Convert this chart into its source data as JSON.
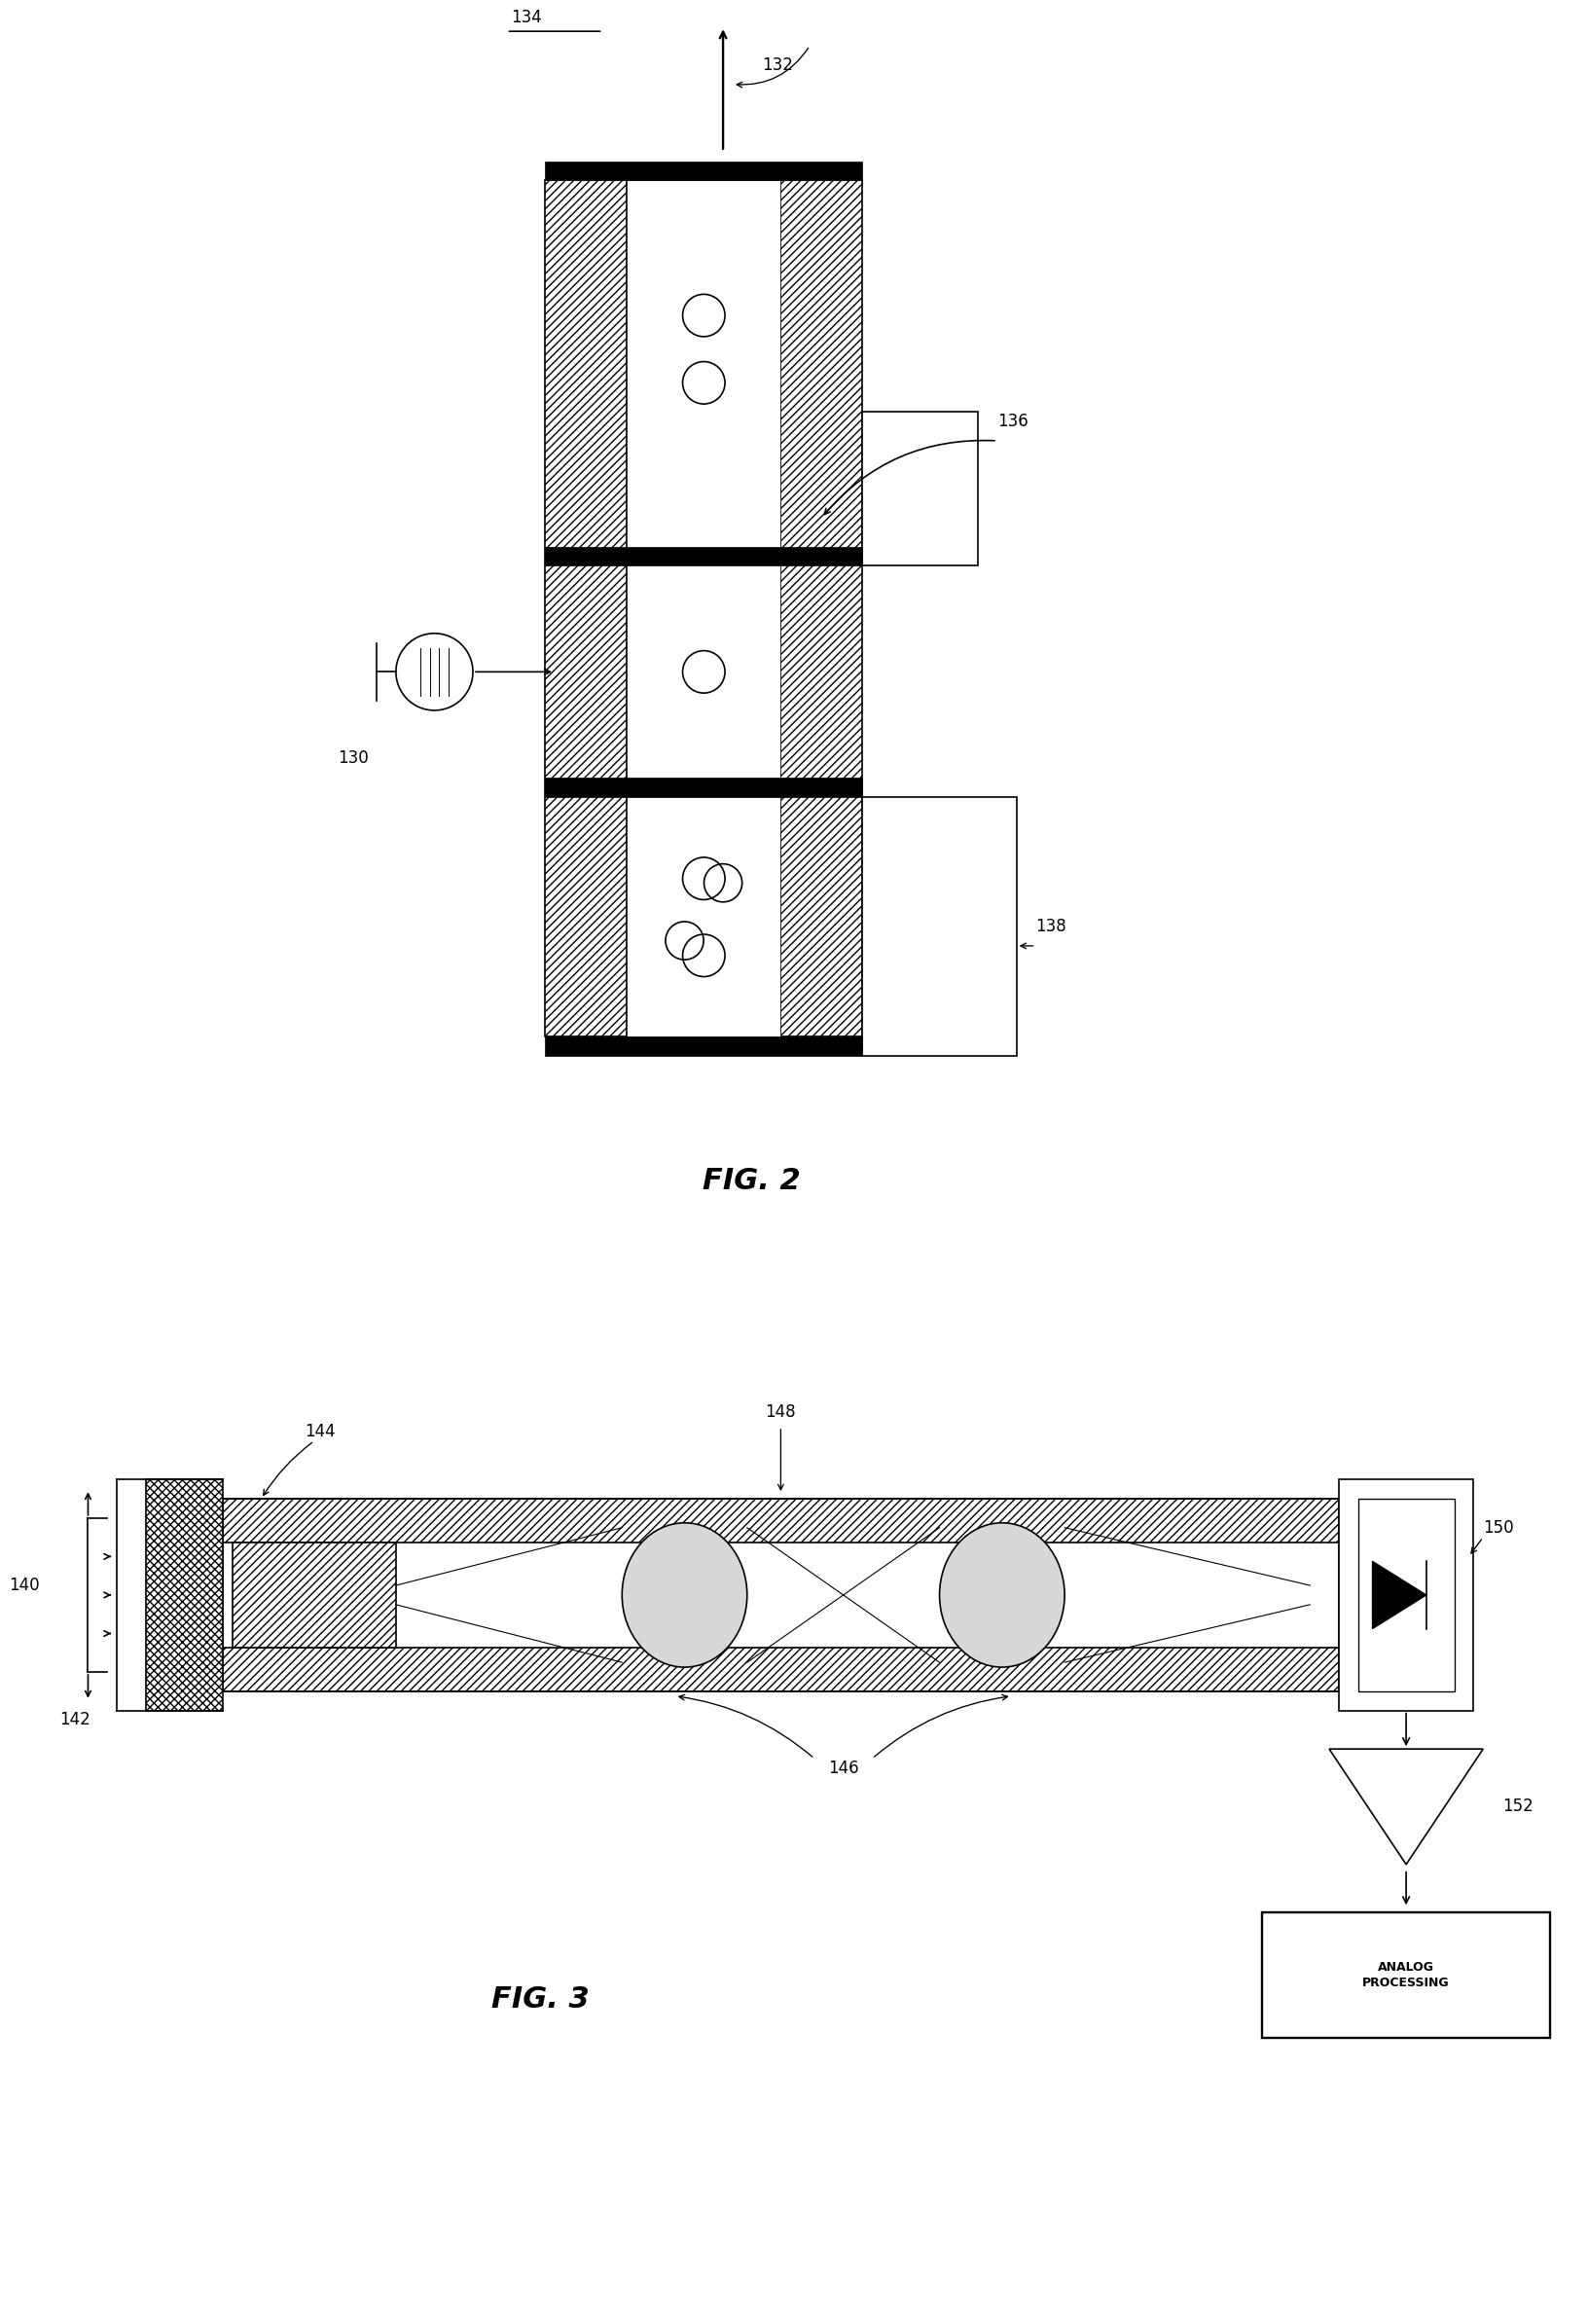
{
  "background_color": "#ffffff",
  "fig_width": 16.33,
  "fig_height": 23.88,
  "fig2_label": "FIG. 2",
  "fig3_label": "FIG. 3",
  "label_134": "134",
  "label_132": "132",
  "label_136": "136",
  "label_130": "130",
  "label_138": "138",
  "label_140": "140",
  "label_142": "142",
  "label_144": "144",
  "label_146": "146",
  "label_148": "148",
  "label_150": "150",
  "label_152": "152",
  "label_analog": "ANALOG\nPROCESSING"
}
